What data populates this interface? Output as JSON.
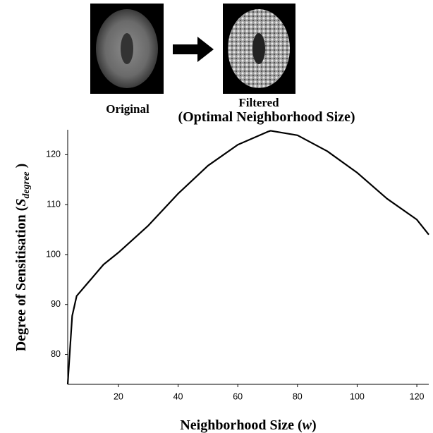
{
  "images": [
    {
      "label": "Original"
    },
    {
      "label": "Filtered",
      "sublabel": "(Optimal Neighborhood Size)"
    }
  ],
  "chart_data": {
    "type": "line",
    "xlabel": [
      "Neighborhood Size (",
      "w",
      ")"
    ],
    "ylabel": [
      "Degree of Sensitisation (",
      "S",
      "degree",
      " )"
    ],
    "x": [
      3,
      4.5,
      6,
      10,
      15,
      20,
      30,
      40,
      50,
      60,
      70,
      71,
      80,
      90,
      100,
      110,
      120,
      124
    ],
    "values": [
      74,
      87.7,
      91.7,
      94.5,
      98,
      100.4,
      105.8,
      112.2,
      117.8,
      122,
      124.6,
      124.8,
      123.9,
      120.7,
      116.4,
      111.2,
      107,
      104
    ],
    "color": "#000000",
    "xlim": [
      3,
      124
    ],
    "xticks": [
      20,
      40,
      60,
      80,
      100,
      120
    ],
    "ylim": [
      74,
      125
    ],
    "yticks": [
      80,
      90,
      100,
      110,
      120
    ],
    "grid": false
  }
}
